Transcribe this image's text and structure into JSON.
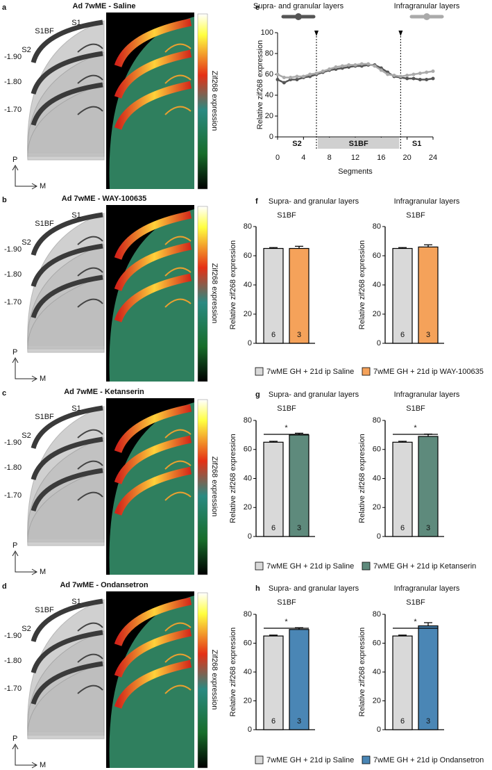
{
  "image_panels": [
    {
      "letter": "a",
      "title": "Ad 7wME - Saline",
      "colorbar_label": "Zif268 expression"
    },
    {
      "letter": "b",
      "title": "Ad 7wME - WAY-100635",
      "colorbar_label": "Zif268 expression"
    },
    {
      "letter": "c",
      "title": "Ad 7wME - Ketanserin",
      "colorbar_label": "Zif268 expression"
    },
    {
      "letter": "d",
      "title": "Ad 7wME - Ondansetron",
      "colorbar_label": "Zif268 expression"
    }
  ],
  "brain_labels": {
    "regions": [
      "S1",
      "S1BF",
      "S2"
    ],
    "bregma": [
      "-1.90",
      "-1.80",
      "-1.70"
    ],
    "axes": [
      "P",
      "M"
    ]
  },
  "legends": [
    [
      {
        "name": "7wME GH + 21d ip Saline",
        "color": "#d9d9d9"
      },
      {
        "name": "7wME GH + 21d ip WAY-100635",
        "color": "#f5a25a"
      }
    ],
    [
      {
        "name": "7wME GH + 21d ip Saline",
        "color": "#d9d9d9"
      },
      {
        "name": "7wME GH + 21d ip Ketanserin",
        "color": "#5e8a7c"
      }
    ],
    [
      {
        "name": "7wME GH + 21d ip Saline",
        "color": "#d9d9d9"
      },
      {
        "name": "7wME GH + 21d ip Ondansetron",
        "color": "#4a86b5"
      }
    ]
  ],
  "chart_data": [
    {
      "type": "line",
      "letter": "e",
      "xlabel": "Segments",
      "ylabel": "Relative zif268 expression",
      "x": [
        0,
        1,
        2,
        3,
        4,
        5,
        6,
        7,
        8,
        9,
        10,
        11,
        12,
        13,
        14,
        15,
        16,
        17,
        18,
        19,
        20,
        21,
        22,
        23,
        24
      ],
      "series": [
        {
          "name": "Supra- and granular layers",
          "color": "#555555",
          "values": [
            55,
            52,
            55,
            55,
            57,
            58,
            60,
            62,
            64,
            65,
            66,
            67,
            68,
            68,
            69,
            69,
            66,
            62,
            58,
            57,
            56,
            56,
            55,
            55,
            56
          ]
        },
        {
          "name": "Infragranular layers",
          "color": "#aaaaaa",
          "values": [
            60,
            57,
            57,
            58,
            58,
            60,
            61,
            63,
            65,
            67,
            68,
            69,
            69,
            70,
            70,
            68,
            64,
            60,
            59,
            58,
            59,
            60,
            61,
            62,
            63
          ]
        }
      ],
      "vlines": [
        6,
        19
      ],
      "regions": [
        {
          "label": "S2",
          "from": 0,
          "to": 6
        },
        {
          "label": "S1BF",
          "from": 6,
          "to": 19,
          "shaded": true
        },
        {
          "label": "S1",
          "from": 19,
          "to": 24
        }
      ],
      "xlim": [
        0,
        24
      ],
      "xticks": [
        0,
        4,
        8,
        12,
        16,
        20,
        24
      ],
      "ylim": [
        0,
        100
      ],
      "yticks": [
        0,
        20,
        40,
        60,
        80,
        100
      ]
    },
    {
      "type": "bar",
      "letter": "f",
      "title": "Supra- and granular layers",
      "subtitle": "S1BF",
      "ylabel": "Relative zif268 expression",
      "values": [
        65,
        65
      ],
      "errors": [
        0.6,
        1.5
      ],
      "colors": [
        "#d9d9d9",
        "#f5a25a"
      ],
      "n": [
        6,
        3
      ],
      "ylim": [
        0,
        80
      ],
      "yticks": [
        0,
        20,
        40,
        60,
        80
      ]
    },
    {
      "type": "bar",
      "title": "Infragranular layers",
      "subtitle": "S1BF",
      "ylabel": "Relative zif268 expression",
      "values": [
        65,
        66
      ],
      "errors": [
        0.6,
        1.5
      ],
      "colors": [
        "#d9d9d9",
        "#f5a25a"
      ],
      "n": [
        6,
        3
      ],
      "ylim": [
        0,
        80
      ],
      "yticks": [
        0,
        20,
        40,
        60,
        80
      ]
    },
    {
      "type": "bar",
      "letter": "g",
      "title": "Supra- and granular layers",
      "subtitle": "S1BF",
      "ylabel": "Relative zif268 expression",
      "values": [
        65,
        70
      ],
      "errors": [
        0.6,
        1.2
      ],
      "colors": [
        "#d9d9d9",
        "#5e8a7c"
      ],
      "n": [
        6,
        3
      ],
      "significance": "*",
      "ylim": [
        0,
        80
      ],
      "yticks": [
        0,
        20,
        40,
        60,
        80
      ]
    },
    {
      "type": "bar",
      "title": "Infragranular layers",
      "subtitle": "S1BF",
      "ylabel": "Relative zif268 expression",
      "values": [
        65,
        69
      ],
      "errors": [
        0.6,
        1.6
      ],
      "colors": [
        "#d9d9d9",
        "#5e8a7c"
      ],
      "n": [
        6,
        3
      ],
      "significance": "*",
      "ylim": [
        0,
        80
      ],
      "yticks": [
        0,
        20,
        40,
        60,
        80
      ]
    },
    {
      "type": "bar",
      "letter": "h",
      "title": "Supra- and granular layers",
      "subtitle": "S1BF",
      "ylabel": "Relative zif268 expression",
      "values": [
        65,
        69.5
      ],
      "errors": [
        0.6,
        1.2
      ],
      "colors": [
        "#d9d9d9",
        "#4a86b5"
      ],
      "n": [
        6,
        3
      ],
      "significance": "*",
      "ylim": [
        0,
        80
      ],
      "yticks": [
        0,
        20,
        40,
        60,
        80
      ]
    },
    {
      "type": "bar",
      "title": "Infragranular layers",
      "subtitle": "S1BF",
      "ylabel": "Relative zif268 expression",
      "values": [
        65,
        72
      ],
      "errors": [
        0.6,
        2.2
      ],
      "colors": [
        "#d9d9d9",
        "#4a86b5"
      ],
      "n": [
        6,
        3
      ],
      "significance": "*",
      "ylim": [
        0,
        80
      ],
      "yticks": [
        0,
        20,
        40,
        60,
        80
      ]
    }
  ]
}
